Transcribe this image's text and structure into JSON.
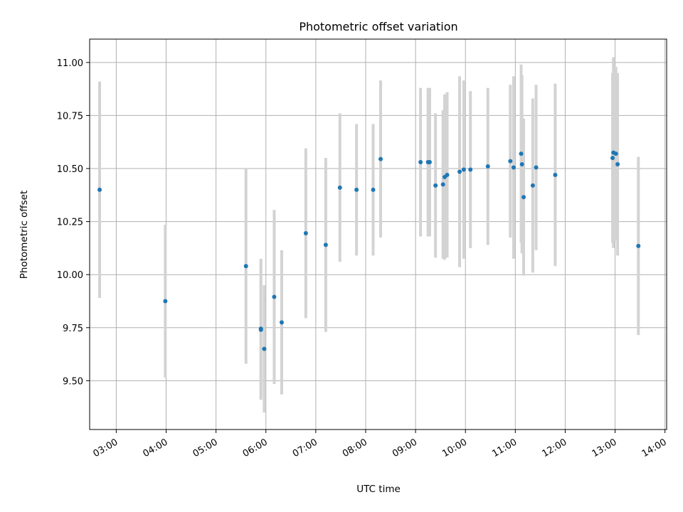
{
  "chart_data": {
    "type": "scatter",
    "title": "Photometric offset variation",
    "xlabel": "UTC time",
    "ylabel": "Photometric offset",
    "x_tick_labels": [
      "03:00",
      "04:00",
      "05:00",
      "06:00",
      "07:00",
      "08:00",
      "09:00",
      "10:00",
      "11:00",
      "12:00",
      "13:00",
      "14:00"
    ],
    "y_ticks": [
      9.5,
      9.75,
      10.0,
      10.25,
      10.5,
      10.75,
      11.0
    ],
    "y_tick_labels": [
      "9.50",
      "9.75",
      "10.00",
      "10.25",
      "10.50",
      "10.75",
      "11.00"
    ],
    "xlim": [
      "02:28",
      "14:02"
    ],
    "ylim": [
      9.27,
      11.11
    ],
    "grid": true,
    "point_color": "#1f77b4",
    "errorbar_color": "#d3d3d3",
    "points": [
      {
        "x": "02:40",
        "y": 10.4,
        "err": 0.51
      },
      {
        "x": "03:59",
        "y": 9.875,
        "err": 0.36
      },
      {
        "x": "05:36",
        "y": 10.04,
        "err": 0.46
      },
      {
        "x": "05:54",
        "y": 9.745,
        "err": 0.33
      },
      {
        "x": "05:54",
        "y": 9.74,
        "err": 0.33
      },
      {
        "x": "05:58",
        "y": 9.65,
        "err": 0.3
      },
      {
        "x": "06:10",
        "y": 9.895,
        "err": 0.41
      },
      {
        "x": "06:19",
        "y": 9.775,
        "err": 0.34
      },
      {
        "x": "06:48",
        "y": 10.195,
        "err": 0.4
      },
      {
        "x": "07:12",
        "y": 10.14,
        "err": 0.41
      },
      {
        "x": "07:29",
        "y": 10.41,
        "err": 0.35
      },
      {
        "x": "07:49",
        "y": 10.4,
        "err": 0.31
      },
      {
        "x": "08:09",
        "y": 10.4,
        "err": 0.31
      },
      {
        "x": "08:18",
        "y": 10.545,
        "err": 0.37
      },
      {
        "x": "09:06",
        "y": 10.53,
        "err": 0.35
      },
      {
        "x": "09:15",
        "y": 10.53,
        "err": 0.35
      },
      {
        "x": "09:17",
        "y": 10.53,
        "err": 0.35
      },
      {
        "x": "09:24",
        "y": 10.42,
        "err": 0.34
      },
      {
        "x": "09:33",
        "y": 10.425,
        "err": 0.35
      },
      {
        "x": "09:35",
        "y": 10.46,
        "err": 0.39
      },
      {
        "x": "09:38",
        "y": 10.47,
        "err": 0.39
      },
      {
        "x": "09:53",
        "y": 10.485,
        "err": 0.45
      },
      {
        "x": "09:58",
        "y": 10.495,
        "err": 0.42
      },
      {
        "x": "10:06",
        "y": 10.495,
        "err": 0.37
      },
      {
        "x": "10:27",
        "y": 10.51,
        "err": 0.37
      },
      {
        "x": "10:54",
        "y": 10.535,
        "err": 0.36
      },
      {
        "x": "10:58",
        "y": 10.505,
        "err": 0.43
      },
      {
        "x": "11:07",
        "y": 10.57,
        "err": 0.42
      },
      {
        "x": "11:08",
        "y": 10.52,
        "err": 0.42
      },
      {
        "x": "11:10",
        "y": 10.365,
        "err": 0.37
      },
      {
        "x": "11:21",
        "y": 10.42,
        "err": 0.41
      },
      {
        "x": "11:25",
        "y": 10.505,
        "err": 0.39
      },
      {
        "x": "11:48",
        "y": 10.47,
        "err": 0.43
      },
      {
        "x": "12:57",
        "y": 10.55,
        "err": 0.4
      },
      {
        "x": "12:58",
        "y": 10.575,
        "err": 0.45
      },
      {
        "x": "13:01",
        "y": 10.57,
        "err": 0.41
      },
      {
        "x": "13:03",
        "y": 10.52,
        "err": 0.43
      },
      {
        "x": "13:28",
        "y": 10.135,
        "err": 0.42
      }
    ]
  }
}
